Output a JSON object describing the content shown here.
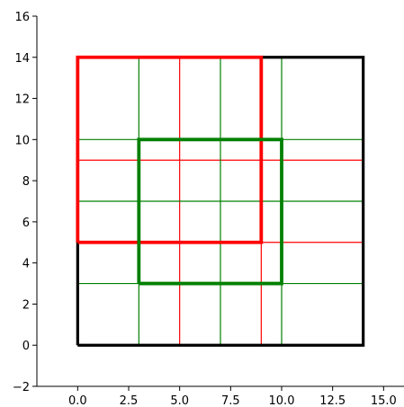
{
  "chart_data": {
    "type": "line",
    "title": "",
    "xlabel": "",
    "ylabel": "",
    "xlim": [
      -2,
      16
    ],
    "ylim": [
      -2,
      16
    ],
    "x_ticks": [
      "0.0",
      "2.5",
      "5.0",
      "7.5",
      "10.0",
      "12.5",
      "15.0"
    ],
    "y_ticks": [
      "−2",
      "0",
      "2",
      "4",
      "6",
      "8",
      "10",
      "12",
      "14",
      "16"
    ],
    "grid": false,
    "legend": "none",
    "series": [
      {
        "color": "#000000",
        "style": "rectangle",
        "thick": true,
        "x": [
          0,
          14,
          14,
          0,
          0
        ],
        "y": [
          0,
          0,
          14,
          14,
          0
        ]
      },
      {
        "color": "#ff0000",
        "style": "rectangle",
        "thick": true,
        "x": [
          0,
          9,
          9,
          0,
          0
        ],
        "y": [
          5,
          5,
          14,
          14,
          5
        ]
      },
      {
        "color": "#008000",
        "style": "rectangle",
        "thick": true,
        "x": [
          3,
          10,
          10,
          3,
          3
        ],
        "y": [
          3,
          3,
          10,
          10,
          3
        ]
      },
      {
        "color": "#ff0000",
        "style": "gridlines",
        "thick": false,
        "vertical_x": [
          0,
          5,
          9,
          14
        ],
        "horizontal_y": [
          0,
          5,
          9,
          14
        ],
        "span_x": [
          0,
          14
        ],
        "span_y": [
          0,
          14
        ]
      },
      {
        "color": "#008000",
        "style": "gridlines",
        "thick": false,
        "vertical_x": [
          0,
          3,
          7,
          10,
          14
        ],
        "horizontal_y": [
          0,
          3,
          7,
          10,
          14
        ],
        "span_x": [
          0,
          14
        ],
        "span_y": [
          0,
          14
        ]
      }
    ]
  },
  "colors": {
    "black": "#000000",
    "red": "#ff0000",
    "green": "#008000"
  }
}
